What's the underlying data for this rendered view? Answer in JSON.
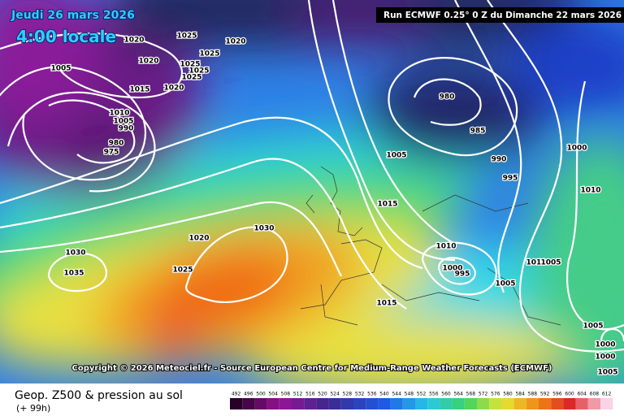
{
  "header": {
    "date": "Jeudi 26 mars 2026",
    "time": "4:00 locale",
    "run": "Run ECMWF 0.25° 0 Z du Dimanche 22 mars 2026"
  },
  "footer": {
    "copyright": "Copyright © 2026 Meteociel.fr - Source European Centre for Medium-Range Weather Forecasts (ECMWF)",
    "product": "Geop. Z500 & pression au sol",
    "lead_time": "(+ 99h)"
  },
  "isobar_labels": [
    1020,
    1025,
    1020,
    1025,
    1020,
    1025,
    1025,
    1025,
    1005,
    1015,
    1020,
    1010,
    1005,
    990,
    980,
    975,
    980,
    985,
    990,
    995,
    1000,
    1005,
    1010,
    1015,
    1020,
    1030,
    1025,
    1030,
    1035,
    1010,
    1000,
    995,
    1010,
    1005,
    1005,
    1015,
    1005,
    1000,
    1000,
    1005
  ],
  "color_scale": [
    492,
    496,
    500,
    504,
    508,
    512,
    516,
    520,
    524,
    528,
    532,
    536,
    540,
    544,
    548,
    552,
    556,
    560,
    564,
    568,
    572,
    576,
    580,
    584,
    588,
    592,
    596,
    600,
    604,
    608,
    612
  ]
}
